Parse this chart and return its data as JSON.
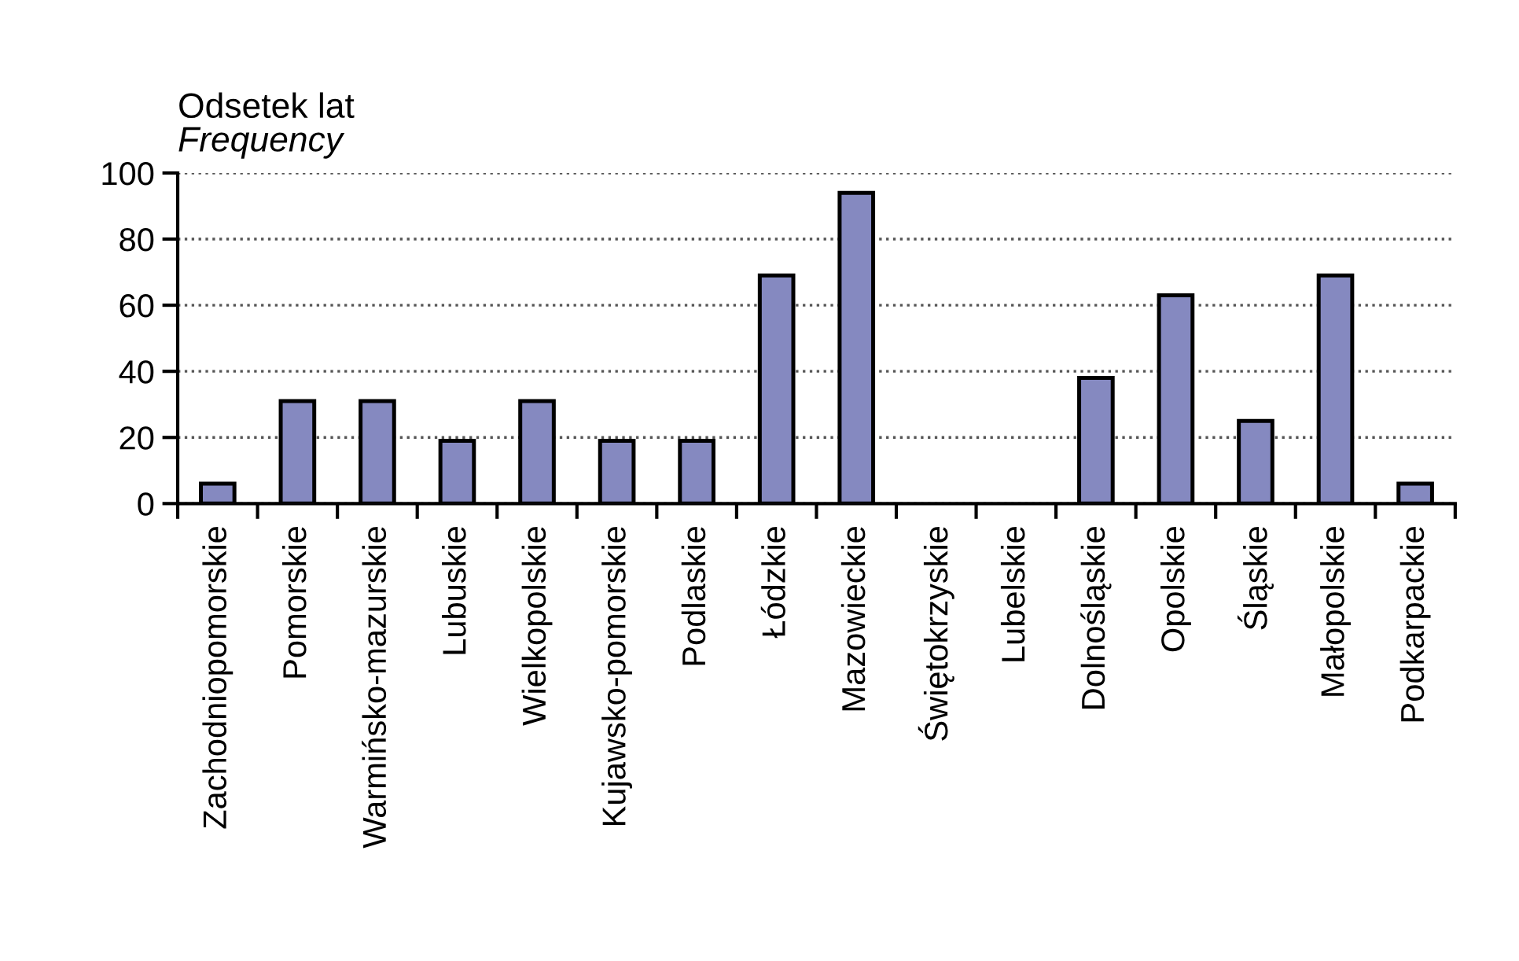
{
  "chart_data": {
    "type": "bar",
    "title": "Odsetek lat",
    "subtitle": "Frequency",
    "categories": [
      "Zachodniopomorskie",
      "Pomorskie",
      "Warmińsko-mazurskie",
      "Lubuskie",
      "Wielkopolskie",
      "Kujawsko-pomorskie",
      "Podlaskie",
      "Łódzkie",
      "Mazowieckie",
      "Świętokrzyskie",
      "Lubelskie",
      "Dolnośląskie",
      "Opolskie",
      "Śląskie",
      "Małopolskie",
      "Podkarpackie"
    ],
    "values": [
      6,
      31,
      31,
      19,
      31,
      19,
      19,
      69,
      94,
      0,
      0,
      38,
      63,
      25,
      69,
      6
    ],
    "color": "#8589c0",
    "ylim": [
      0,
      100
    ],
    "yticks": [
      0,
      20,
      40,
      60,
      80,
      100
    ],
    "grid": "y",
    "legend": false
  }
}
